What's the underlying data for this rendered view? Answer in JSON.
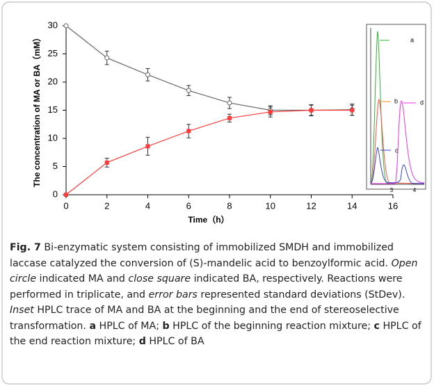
{
  "chart_data": {
    "type": "line",
    "x_label": "Time（h）",
    "y_label": "The concentration of MA or BA（mM）",
    "xlim": [
      0,
      16
    ],
    "xticks": [
      0,
      2,
      4,
      6,
      8,
      10,
      12,
      14,
      16
    ],
    "ylim": [
      0,
      30
    ],
    "yticks": [
      0,
      5,
      10,
      15,
      20,
      25,
      30
    ],
    "x": [
      0,
      2,
      4,
      6,
      8,
      10,
      12,
      14
    ],
    "series": [
      {
        "marker": "open-circle",
        "color": "#666666",
        "values": [
          30,
          24.3,
          21.3,
          18.5,
          16.3,
          15.0,
          15.0,
          15.1
        ],
        "errors": [
          0,
          1.2,
          1.1,
          0.9,
          1.0,
          0.8,
          1.0,
          1.0
        ]
      },
      {
        "marker": "square",
        "color": "#ff3b3b",
        "values": [
          0,
          5.7,
          8.6,
          11.3,
          13.6,
          14.7,
          15.0,
          15.0
        ],
        "errors": [
          0,
          0.8,
          1.6,
          1.2,
          0.7,
          0.9,
          0.9,
          0.9
        ]
      }
    ],
    "inset": {
      "peak_labels": [
        "a",
        "b",
        "c",
        "d"
      ],
      "xticks": [
        3,
        4
      ]
    }
  },
  "caption": [
    {
      "text": "Fig. 7",
      "style": "bold"
    },
    {
      "text": "  Bi-enzymatic system consisting of immobilized SMDH and immobilized laccase catalyzed the conversion of (S)-mandelic acid to benzoylformic acid. ",
      "style": "normal"
    },
    {
      "text": "Open circle",
      "style": "italic"
    },
    {
      "text": " indicated MA and ",
      "style": "normal"
    },
    {
      "text": "close square",
      "style": "italic"
    },
    {
      "text": " indicated BA, respectively. Reactions were performed in triplicate, and ",
      "style": "normal"
    },
    {
      "text": "error bars",
      "style": "italic"
    },
    {
      "text": " represented standard deviations (StDev). ",
      "style": "normal"
    },
    {
      "text": "Inset",
      "style": "italic"
    },
    {
      "text": " HPLC trace of MA and BA at the beginning and the end of stereoselective transformation. ",
      "style": "normal"
    },
    {
      "text": "a",
      "style": "bold"
    },
    {
      "text": " HPLC of MA; ",
      "style": "normal"
    },
    {
      "text": "b",
      "style": "bold"
    },
    {
      "text": " HPLC of the beginning reaction mixture; ",
      "style": "normal"
    },
    {
      "text": "c",
      "style": "bold"
    },
    {
      "text": " HPLC of the end reaction mixture; ",
      "style": "normal"
    },
    {
      "text": "d",
      "style": "bold"
    },
    {
      "text": " HPLC of BA",
      "style": "normal"
    }
  ]
}
